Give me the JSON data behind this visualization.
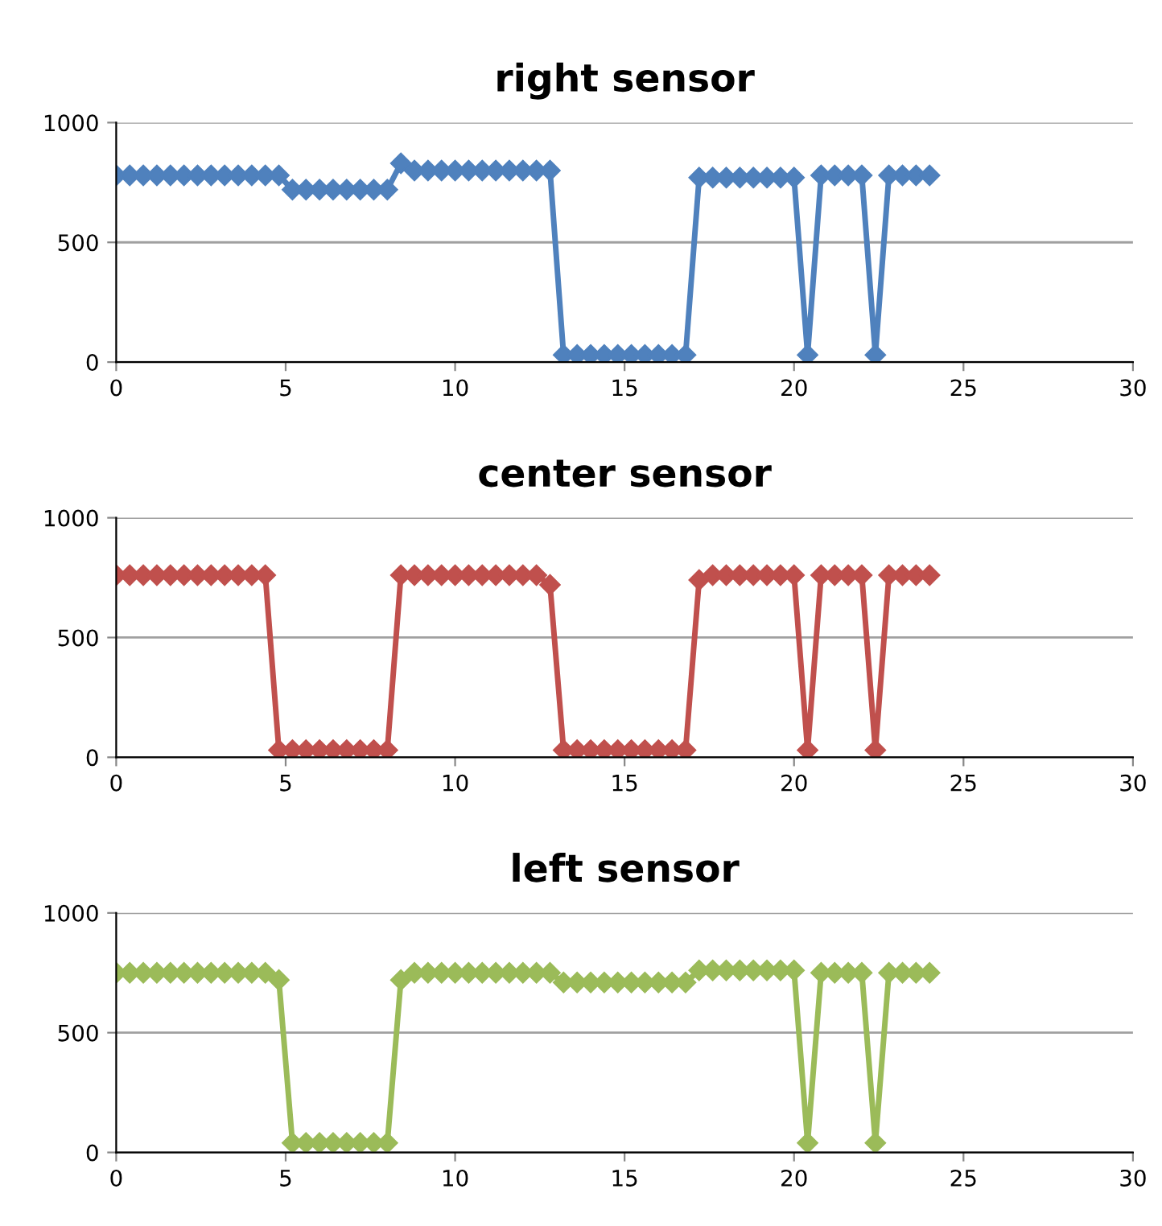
{
  "chart_data": [
    {
      "type": "line",
      "title": "right sensor",
      "x": [
        0,
        0.4,
        0.8,
        1.2,
        1.6,
        2.0,
        2.4,
        2.8,
        3.2,
        3.6,
        4.0,
        4.4,
        4.8,
        5.2,
        5.6,
        6.0,
        6.4,
        6.8,
        7.2,
        7.6,
        8.0,
        8.4,
        8.8,
        9.2,
        9.6,
        10.0,
        10.4,
        10.8,
        11.2,
        11.6,
        12.0,
        12.4,
        12.8,
        13.2,
        13.6,
        14.0,
        14.4,
        14.8,
        15.2,
        15.6,
        16.0,
        16.4,
        16.8,
        17.2,
        17.6,
        18.0,
        18.4,
        18.8,
        19.2,
        19.6,
        20.0,
        20.4,
        20.8,
        21.2,
        21.6,
        22.0,
        22.4,
        22.8,
        23.2,
        23.6,
        24.0
      ],
      "series": [
        {
          "color": "#4f81bd",
          "values": [
            780,
            780,
            780,
            780,
            780,
            780,
            780,
            780,
            780,
            780,
            780,
            780,
            780,
            720,
            720,
            720,
            720,
            720,
            720,
            720,
            720,
            830,
            800,
            800,
            800,
            800,
            800,
            800,
            800,
            800,
            800,
            800,
            800,
            30,
            30,
            30,
            30,
            30,
            30,
            30,
            30,
            30,
            30,
            770,
            770,
            770,
            770,
            770,
            770,
            770,
            770,
            30,
            780,
            780,
            780,
            780,
            30,
            780,
            780,
            780,
            780
          ]
        }
      ],
      "xlim": [
        0,
        30
      ],
      "xticks": [
        0,
        5,
        10,
        15,
        20,
        25,
        30
      ],
      "ylim": [
        0,
        1000
      ],
      "yticks": [
        0,
        500,
        1000
      ],
      "grid": "y",
      "marker": "diamond",
      "line_style": "solid"
    },
    {
      "type": "line",
      "title": "center sensor",
      "x": [
        0,
        0.4,
        0.8,
        1.2,
        1.6,
        2.0,
        2.4,
        2.8,
        3.2,
        3.6,
        4.0,
        4.4,
        4.8,
        5.2,
        5.6,
        6.0,
        6.4,
        6.8,
        7.2,
        7.6,
        8.0,
        8.4,
        8.8,
        9.2,
        9.6,
        10.0,
        10.4,
        10.8,
        11.2,
        11.6,
        12.0,
        12.4,
        12.8,
        13.2,
        13.6,
        14.0,
        14.4,
        14.8,
        15.2,
        15.6,
        16.0,
        16.4,
        16.8,
        17.2,
        17.6,
        18.0,
        18.4,
        18.8,
        19.2,
        19.6,
        20.0,
        20.4,
        20.8,
        21.2,
        21.6,
        22.0,
        22.4,
        22.8,
        23.2,
        23.6,
        24.0
      ],
      "series": [
        {
          "color": "#c0504d",
          "values": [
            760,
            760,
            760,
            760,
            760,
            760,
            760,
            760,
            760,
            760,
            760,
            760,
            30,
            30,
            30,
            30,
            30,
            30,
            30,
            30,
            30,
            760,
            760,
            760,
            760,
            760,
            760,
            760,
            760,
            760,
            760,
            760,
            720,
            30,
            30,
            30,
            30,
            30,
            30,
            30,
            30,
            30,
            30,
            740,
            760,
            760,
            760,
            760,
            760,
            760,
            760,
            30,
            760,
            760,
            760,
            760,
            30,
            760,
            760,
            760,
            760
          ]
        }
      ],
      "xlim": [
        0,
        30
      ],
      "xticks": [
        0,
        5,
        10,
        15,
        20,
        25,
        30
      ],
      "ylim": [
        0,
        1000
      ],
      "yticks": [
        0,
        500,
        1000
      ],
      "grid": "y",
      "marker": "diamond",
      "line_style": "solid"
    },
    {
      "type": "line",
      "title": "left sensor",
      "x": [
        0,
        0.4,
        0.8,
        1.2,
        1.6,
        2.0,
        2.4,
        2.8,
        3.2,
        3.6,
        4.0,
        4.4,
        4.8,
        5.2,
        5.6,
        6.0,
        6.4,
        6.8,
        7.2,
        7.6,
        8.0,
        8.4,
        8.8,
        9.2,
        9.6,
        10.0,
        10.4,
        10.8,
        11.2,
        11.6,
        12.0,
        12.4,
        12.8,
        13.2,
        13.6,
        14.0,
        14.4,
        14.8,
        15.2,
        15.6,
        16.0,
        16.4,
        16.8,
        17.2,
        17.6,
        18.0,
        18.4,
        18.8,
        19.2,
        19.6,
        20.0,
        20.4,
        20.8,
        21.2,
        21.6,
        22.0,
        22.4,
        22.8,
        23.2,
        23.6,
        24.0
      ],
      "series": [
        {
          "color": "#9bbb59",
          "values": [
            750,
            750,
            750,
            750,
            750,
            750,
            750,
            750,
            750,
            750,
            750,
            750,
            720,
            40,
            40,
            40,
            40,
            40,
            40,
            40,
            40,
            720,
            750,
            750,
            750,
            750,
            750,
            750,
            750,
            750,
            750,
            750,
            750,
            710,
            710,
            710,
            710,
            710,
            710,
            710,
            710,
            710,
            710,
            760,
            760,
            760,
            760,
            760,
            760,
            760,
            760,
            40,
            750,
            750,
            750,
            750,
            40,
            750,
            750,
            750,
            750
          ]
        }
      ],
      "xlim": [
        0,
        30
      ],
      "xticks": [
        0,
        5,
        10,
        15,
        20,
        25,
        30
      ],
      "ylim": [
        0,
        1000
      ],
      "yticks": [
        0,
        500,
        1000
      ],
      "grid": "y",
      "marker": "diamond",
      "line_style": "solid"
    }
  ]
}
